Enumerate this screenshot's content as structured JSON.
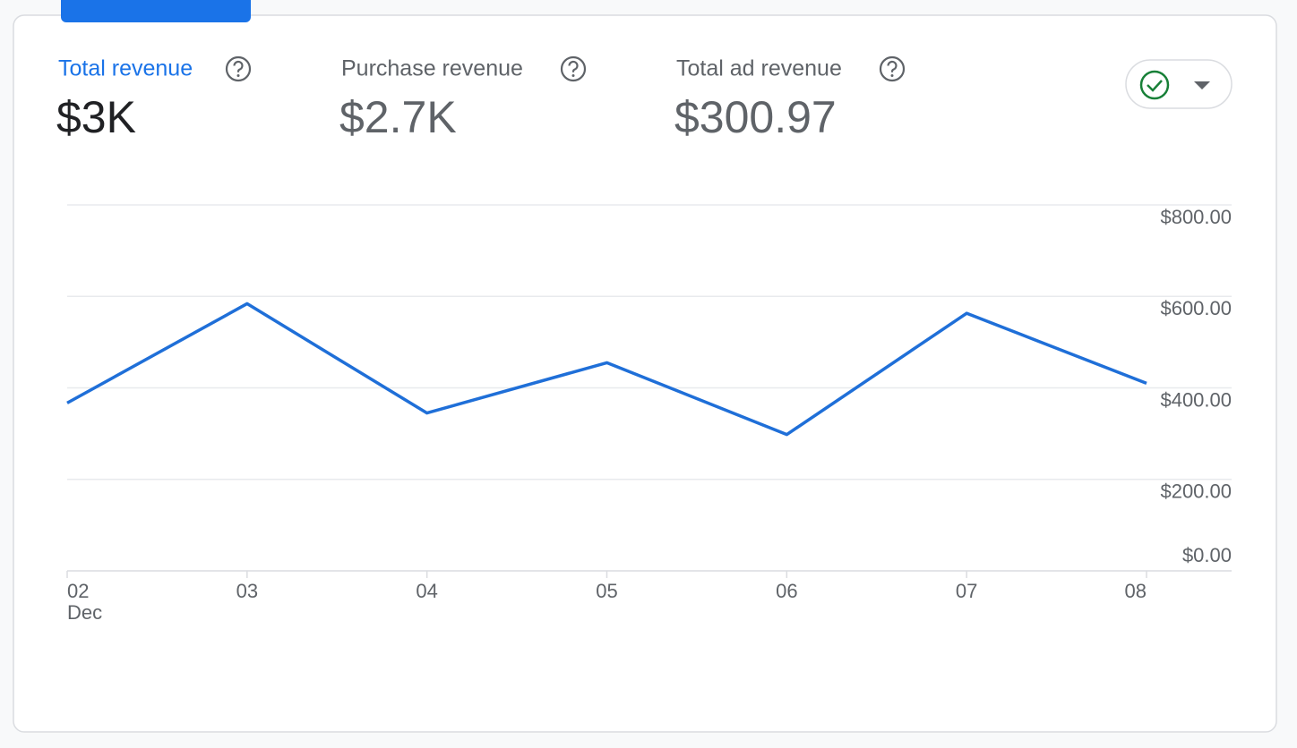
{
  "metrics": [
    {
      "label": "Total revenue",
      "value": "$3K"
    },
    {
      "label": "Purchase revenue",
      "value": "$2.7K"
    },
    {
      "label": "Total ad revenue",
      "value": "$300.97"
    }
  ],
  "chart_data": {
    "type": "line",
    "categories": [
      "02",
      "03",
      "04",
      "05",
      "06",
      "07",
      "08"
    ],
    "month_label": "Dec",
    "values": [
      367,
      584,
      345,
      455,
      298,
      563,
      410
    ],
    "color": "#1f6fd8",
    "ylim": [
      0,
      800
    ],
    "yticks": [
      {
        "value": 0,
        "label": "$0.00"
      },
      {
        "value": 200,
        "label": "$200.00"
      },
      {
        "value": 400,
        "label": "$400.00"
      },
      {
        "value": 600,
        "label": "$600.00"
      },
      {
        "value": 800,
        "label": "$800.00"
      }
    ],
    "grid": true
  }
}
